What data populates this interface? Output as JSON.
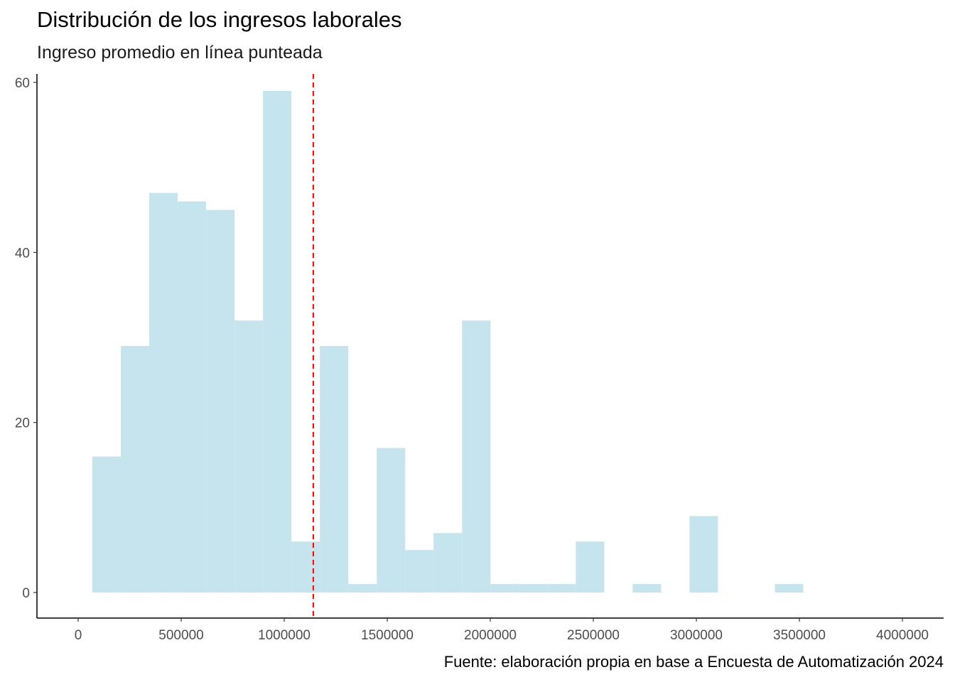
{
  "title": "Distribución de los ingresos laborales",
  "subtitle": "Ingreso promedio en línea punteada",
  "caption": "Fuente: elaboración propia en base a Encuesta de Automatización 2024",
  "colors": {
    "bar_fill": "#c6e4ee",
    "mean_line": "#ff0000",
    "axis": "#000000",
    "tick_text": "#4d4d4d"
  },
  "chart_data": {
    "type": "bar",
    "subtype": "histogram",
    "title": "Distribución de los ingresos laborales",
    "subtitle": "Ingreso promedio en línea punteada",
    "xlabel": "",
    "ylabel": "",
    "xlim": [
      -200000,
      4200000
    ],
    "ylim": [
      -3,
      61
    ],
    "x_ticks": [
      0,
      500000,
      1000000,
      1500000,
      2000000,
      2500000,
      3000000,
      3500000,
      4000000
    ],
    "x_tick_labels": [
      "0",
      "500000",
      "1000000",
      "1500000",
      "2000000",
      "2500000",
      "3000000",
      "3500000",
      "4000000"
    ],
    "y_ticks": [
      0,
      20,
      40,
      60
    ],
    "y_tick_labels": [
      "0",
      "20",
      "40",
      "60"
    ],
    "bin_width": 138000,
    "bins": [
      {
        "x0": 69000,
        "x1": 207000,
        "count": 16
      },
      {
        "x0": 207000,
        "x1": 345000,
        "count": 29
      },
      {
        "x0": 345000,
        "x1": 483000,
        "count": 47
      },
      {
        "x0": 483000,
        "x1": 621000,
        "count": 46
      },
      {
        "x0": 621000,
        "x1": 759000,
        "count": 45
      },
      {
        "x0": 759000,
        "x1": 897000,
        "count": 32
      },
      {
        "x0": 897000,
        "x1": 1035000,
        "count": 59
      },
      {
        "x0": 1035000,
        "x1": 1173000,
        "count": 6
      },
      {
        "x0": 1173000,
        "x1": 1311000,
        "count": 29
      },
      {
        "x0": 1311000,
        "x1": 1449000,
        "count": 1
      },
      {
        "x0": 1449000,
        "x1": 1587000,
        "count": 17
      },
      {
        "x0": 1587000,
        "x1": 1725000,
        "count": 5
      },
      {
        "x0": 1725000,
        "x1": 1863000,
        "count": 7
      },
      {
        "x0": 1863000,
        "x1": 2001000,
        "count": 32
      },
      {
        "x0": 2001000,
        "x1": 2139000,
        "count": 1
      },
      {
        "x0": 2139000,
        "x1": 2277000,
        "count": 1
      },
      {
        "x0": 2277000,
        "x1": 2415000,
        "count": 1
      },
      {
        "x0": 2415000,
        "x1": 2553000,
        "count": 6
      },
      {
        "x0": 2553000,
        "x1": 2691000,
        "count": 0
      },
      {
        "x0": 2691000,
        "x1": 2829000,
        "count": 1
      },
      {
        "x0": 2829000,
        "x1": 2967000,
        "count": 0
      },
      {
        "x0": 2967000,
        "x1": 3105000,
        "count": 9
      },
      {
        "x0": 3105000,
        "x1": 3243000,
        "count": 0
      },
      {
        "x0": 3243000,
        "x1": 3381000,
        "count": 0
      },
      {
        "x0": 3381000,
        "x1": 3519000,
        "count": 1
      }
    ],
    "mean_line": {
      "x": 1141000,
      "style": "dashed"
    },
    "grid": false,
    "legend": "none"
  }
}
